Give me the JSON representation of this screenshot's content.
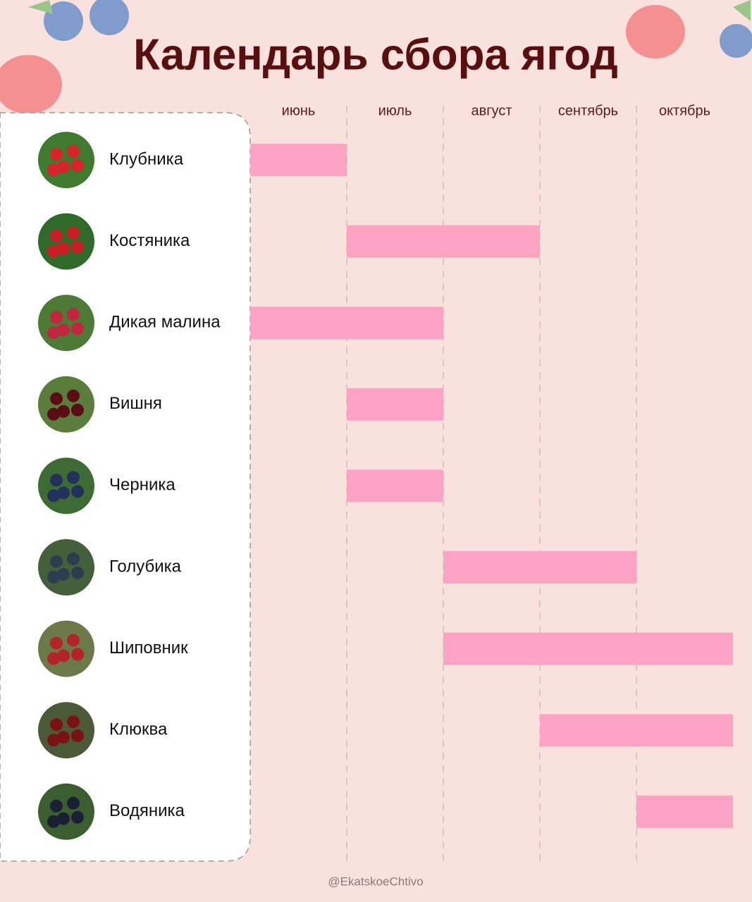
{
  "chart_data": {
    "type": "gantt",
    "title": "Календарь сбора ягод",
    "categories": [
      "Клубника",
      "Костяника",
      "Дикая малина",
      "Вишня",
      "Черника",
      "Голубика",
      "Шиповник",
      "Клюква",
      "Водяника"
    ],
    "start": [
      0,
      1,
      0,
      1,
      1,
      2,
      2,
      3,
      4
    ],
    "end": [
      1,
      3,
      2,
      2,
      2,
      4,
      5,
      5,
      5
    ],
    "color": "#ffa3c4",
    "xlim": [
      0,
      5
    ],
    "xticks": [
      {
        "value": 0.5,
        "label": "июнь"
      },
      {
        "value": 1.5,
        "label": "июль"
      },
      {
        "value": 2.5,
        "label": "август"
      },
      {
        "value": 3.5,
        "label": "сентябрь"
      },
      {
        "value": 4.5,
        "label": "октябрь"
      }
    ],
    "grid": true,
    "footer": "@EkatskoeChtivo"
  }
}
